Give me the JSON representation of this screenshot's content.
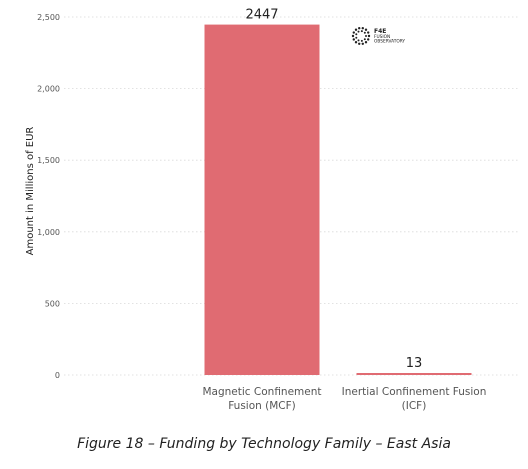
{
  "chart_data": {
    "type": "bar",
    "categories": [
      [
        "Magnetic Confinement",
        "Fusion (MCF)"
      ],
      [
        "Inertial Confinement Fusion",
        "(ICF)"
      ]
    ],
    "values": [
      2447,
      13
    ],
    "data_labels": [
      "2447",
      "13"
    ],
    "title": "",
    "xlabel": "",
    "ylabel": "Amount in Millions of EUR",
    "ylim": [
      0,
      2500
    ],
    "yticks": [
      0,
      500,
      1000,
      1500,
      2000,
      2500
    ],
    "ytick_labels": [
      "0",
      "500",
      "1,000",
      "1,500",
      "2,000",
      "2,500"
    ],
    "grid": true,
    "bar_color": "#e06b72",
    "grid_color": "#d9d9d9"
  },
  "logo": {
    "line1": "F4E",
    "line2": "FUSION",
    "line3": "OBSERVATORY"
  },
  "caption": "Figure 18 – Funding by Technology Family – East Asia"
}
